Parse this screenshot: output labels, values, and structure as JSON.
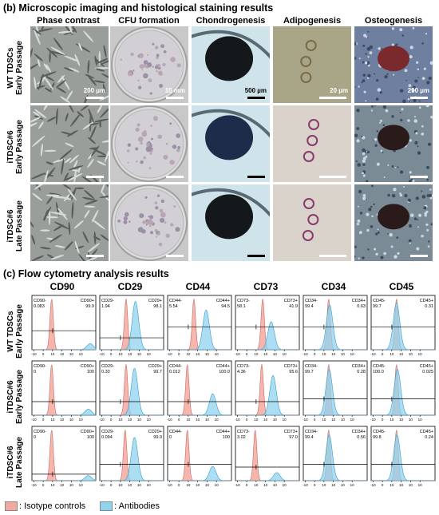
{
  "section_b": {
    "title": "(b)  Microscopic imaging and histological staining results",
    "columns": [
      "Phase contrast",
      "CFU formation",
      "Chondrogenesis",
      "Adipogenesis",
      "Osteogenesis"
    ],
    "rows": [
      {
        "line1": "WT TDSCs",
        "line2": "Early Passage"
      },
      {
        "line1": "iTDSC#6",
        "line2": "Early Passage"
      },
      {
        "line1": "iTDSC#6",
        "line2": "Late Passage"
      }
    ],
    "scale_bars": [
      "200 µm",
      "10 mm",
      "500 µm",
      "20 µm",
      "200 µm"
    ]
  },
  "section_c": {
    "title": "(c)  Flow cytometry analysis results",
    "legend": {
      "isotype": ": Isotype controls",
      "antibodies": ": Antibodies",
      "isotype_color": "#f4a9a0",
      "antibody_color": "#8fd3ef"
    }
  },
  "chart_data": {
    "type": "histogram-grid",
    "markers": [
      "CD90",
      "CD29",
      "CD44",
      "CD73",
      "CD34",
      "CD45"
    ],
    "rows": [
      "WT TDSCs Early Passage",
      "iTDSC#6 Early Passage",
      "iTDSC#6 Late Passage"
    ],
    "x_tick_labels": [
      "-10",
      "0",
      "10",
      "10",
      "10",
      "10"
    ],
    "panels": [
      [
        {
          "neg_label": "CD90-",
          "neg_value": "0.083",
          "pos_label": "CD90+",
          "pos_value": "99.9",
          "iso_peak": 0.9,
          "ab_peak": 5.0,
          "ab_h": 0.12,
          "gate_y": 0.35
        },
        {
          "neg_label": "CD29-",
          "neg_value": "1.94",
          "pos_label": "CD29+",
          "pos_value": "98.1",
          "iso_peak": 1.6,
          "ab_peak": 2.6,
          "ab_h": 0.95,
          "gate_y": 0.22
        },
        {
          "neg_label": "CD44-",
          "neg_value": "5.54",
          "pos_label": "CD44+",
          "pos_value": "94.5",
          "iso_peak": 1.6,
          "ab_peak": 2.9,
          "ab_h": 0.78,
          "gate_y": 0.42
        },
        {
          "neg_label": "CD73-",
          "neg_value": "58.1",
          "pos_label": "CD73+",
          "pos_value": "41.9",
          "iso_peak": 1.7,
          "ab_peak": 2.6,
          "ab_h": 0.55,
          "gate_y": 0.42
        },
        {
          "neg_label": "CD34-",
          "neg_value": "99.4",
          "pos_label": "CD34+",
          "pos_value": "0.63",
          "iso_peak": 1.5,
          "ab_peak": 1.6,
          "ab_h": 0.88,
          "gate_y": 0.42
        },
        {
          "neg_label": "CD45-",
          "neg_value": "99.7",
          "pos_label": "CD45+",
          "pos_value": "0.31",
          "iso_peak": 1.5,
          "ab_peak": 1.5,
          "ab_h": 0.92,
          "gate_y": 0.42
        }
      ],
      [
        {
          "neg_label": "CD90-",
          "neg_value": "0",
          "pos_label": "CD90+",
          "pos_value": "100",
          "iso_peak": 0.9,
          "ab_peak": 4.8,
          "ab_h": 0.12,
          "gate_y": 0.25
        },
        {
          "neg_label": "CD29-",
          "neg_value": "0.33",
          "pos_label": "CD29+",
          "pos_value": "99.7",
          "iso_peak": 1.6,
          "ab_peak": 2.5,
          "ab_h": 0.92,
          "gate_y": 0.25
        },
        {
          "neg_label": "CD44-",
          "neg_value": "0.012",
          "pos_label": "CD44+",
          "pos_value": "100.0",
          "iso_peak": 0.9,
          "ab_peak": 3.6,
          "ab_h": 0.42,
          "gate_y": 0.25
        },
        {
          "neg_label": "CD73-",
          "neg_value": "4.36",
          "pos_label": "CD73+",
          "pos_value": "95.6",
          "iso_peak": 1.6,
          "ab_peak": 2.8,
          "ab_h": 0.78,
          "gate_y": 0.25
        },
        {
          "neg_label": "CD34-",
          "neg_value": "99.7",
          "pos_label": "CD34+",
          "pos_value": "0.28",
          "iso_peak": 1.5,
          "ab_peak": 1.55,
          "ab_h": 0.9,
          "gate_y": 0.3
        },
        {
          "neg_label": "CD45-",
          "neg_value": "100.0",
          "pos_label": "CD45+",
          "pos_value": "0.025",
          "iso_peak": 1.5,
          "ab_peak": 1.6,
          "ab_h": 0.9,
          "gate_y": 0.3
        }
      ],
      [
        {
          "neg_label": "CD90-",
          "neg_value": "0",
          "pos_label": "CD90+",
          "pos_value": "100",
          "iso_peak": 0.9,
          "ab_peak": 4.8,
          "ab_h": 0.1,
          "gate_y": 0.12
        },
        {
          "neg_label": "CD29-",
          "neg_value": "0.094",
          "pos_label": "CD29+",
          "pos_value": "99.9",
          "iso_peak": 1.5,
          "ab_peak": 2.5,
          "ab_h": 0.85,
          "gate_y": 0.3
        },
        {
          "neg_label": "CD44-",
          "neg_value": "0",
          "pos_label": "CD44+",
          "pos_value": "100",
          "iso_peak": 0.9,
          "ab_peak": 3.6,
          "ab_h": 0.28,
          "gate_y": 0.3
        },
        {
          "neg_label": "CD73-",
          "neg_value": "3.02",
          "pos_label": "CD73+",
          "pos_value": "97.0",
          "iso_peak": 0.9,
          "ab_peak": 3.2,
          "ab_h": 0.16,
          "gate_y": 0.25
        },
        {
          "neg_label": "CD34-",
          "neg_value": "99.4",
          "pos_label": "CD34+",
          "pos_value": "0.56",
          "iso_peak": 1.5,
          "ab_peak": 1.55,
          "ab_h": 0.9,
          "gate_y": 0.3
        },
        {
          "neg_label": "CD45-",
          "neg_value": "99.8",
          "pos_label": "CD45+",
          "pos_value": "0.24",
          "iso_peak": 1.5,
          "ab_peak": 1.55,
          "ab_h": 0.9,
          "gate_y": 0.3
        }
      ]
    ]
  }
}
